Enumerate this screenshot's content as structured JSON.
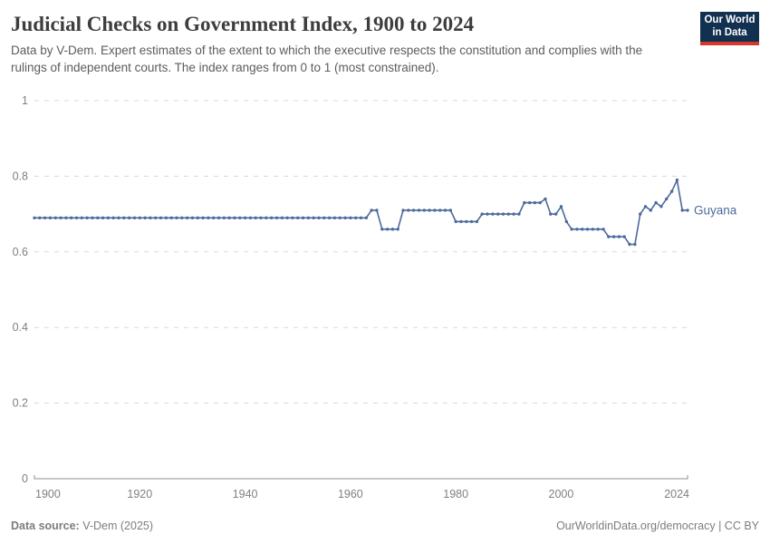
{
  "header": {
    "title": "Judicial Checks on Government Index, 1900 to 2024",
    "subtitle": "Data by V-Dem. Expert estimates of the extent to which the executive respects the constitution and complies with the rulings of independent courts. The index ranges from 0 to 1 (most constrained).",
    "logo": {
      "line1": "Our World",
      "line2": "in Data"
    }
  },
  "footer": {
    "source_label": "Data source:",
    "source_value": "V-Dem (2025)",
    "right_text": "OurWorldinData.org/democracy | CC BY"
  },
  "colors": {
    "series": "#4C6A9C",
    "grid": "#d9d9d9",
    "axis": "#8f8f8f",
    "tick_label": "#808080",
    "logo_bg": "#12304F",
    "logo_red": "#d7382e"
  },
  "chart_data": {
    "type": "line",
    "title": "Judicial Checks on Government Index, 1900 to 2024",
    "xlabel": "",
    "ylabel": "",
    "xlim": [
      1900,
      2024
    ],
    "ylim": [
      0,
      1
    ],
    "xticks": [
      1900,
      1920,
      1940,
      1960,
      1980,
      2000,
      2024
    ],
    "yticks": [
      0,
      0.2,
      0.4,
      0.6,
      0.8,
      1
    ],
    "grid": "horizontal-dashed",
    "legend_position": "end-of-line-label",
    "series": [
      {
        "name": "Guyana",
        "color": "#4C6A9C",
        "x": [
          1900,
          1901,
          1902,
          1903,
          1904,
          1905,
          1906,
          1907,
          1908,
          1909,
          1910,
          1911,
          1912,
          1913,
          1914,
          1915,
          1916,
          1917,
          1918,
          1919,
          1920,
          1921,
          1922,
          1923,
          1924,
          1925,
          1926,
          1927,
          1928,
          1929,
          1930,
          1931,
          1932,
          1933,
          1934,
          1935,
          1936,
          1937,
          1938,
          1939,
          1940,
          1941,
          1942,
          1943,
          1944,
          1945,
          1946,
          1947,
          1948,
          1949,
          1950,
          1951,
          1952,
          1953,
          1954,
          1955,
          1956,
          1957,
          1958,
          1959,
          1960,
          1961,
          1962,
          1963,
          1964,
          1965,
          1966,
          1967,
          1968,
          1969,
          1970,
          1971,
          1972,
          1973,
          1974,
          1975,
          1976,
          1977,
          1978,
          1979,
          1980,
          1981,
          1982,
          1983,
          1984,
          1985,
          1986,
          1987,
          1988,
          1989,
          1990,
          1991,
          1992,
          1993,
          1994,
          1995,
          1996,
          1997,
          1998,
          1999,
          2000,
          2001,
          2002,
          2003,
          2004,
          2005,
          2006,
          2007,
          2008,
          2009,
          2010,
          2011,
          2012,
          2013,
          2014,
          2015,
          2016,
          2017,
          2018,
          2019,
          2020,
          2021,
          2022,
          2023,
          2024
        ],
        "values": [
          0.69,
          0.69,
          0.69,
          0.69,
          0.69,
          0.69,
          0.69,
          0.69,
          0.69,
          0.69,
          0.69,
          0.69,
          0.69,
          0.69,
          0.69,
          0.69,
          0.69,
          0.69,
          0.69,
          0.69,
          0.69,
          0.69,
          0.69,
          0.69,
          0.69,
          0.69,
          0.69,
          0.69,
          0.69,
          0.69,
          0.69,
          0.69,
          0.69,
          0.69,
          0.69,
          0.69,
          0.69,
          0.69,
          0.69,
          0.69,
          0.69,
          0.69,
          0.69,
          0.69,
          0.69,
          0.69,
          0.69,
          0.69,
          0.69,
          0.69,
          0.69,
          0.69,
          0.69,
          0.69,
          0.69,
          0.69,
          0.69,
          0.69,
          0.69,
          0.69,
          0.69,
          0.69,
          0.69,
          0.69,
          0.71,
          0.71,
          0.66,
          0.66,
          0.66,
          0.66,
          0.71,
          0.71,
          0.71,
          0.71,
          0.71,
          0.71,
          0.71,
          0.71,
          0.71,
          0.71,
          0.68,
          0.68,
          0.68,
          0.68,
          0.68,
          0.7,
          0.7,
          0.7,
          0.7,
          0.7,
          0.7,
          0.7,
          0.7,
          0.73,
          0.73,
          0.73,
          0.73,
          0.74,
          0.7,
          0.7,
          0.72,
          0.68,
          0.66,
          0.66,
          0.66,
          0.66,
          0.66,
          0.66,
          0.66,
          0.64,
          0.64,
          0.64,
          0.64,
          0.62,
          0.62,
          0.7,
          0.72,
          0.71,
          0.73,
          0.72,
          0.74,
          0.76,
          0.79,
          0.71,
          0.71
        ]
      }
    ]
  }
}
